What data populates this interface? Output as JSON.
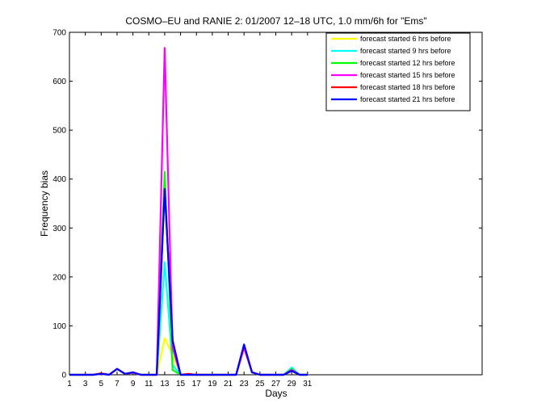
{
  "chart_data": {
    "type": "line",
    "title": "COSMO–EU and RANIE 2: 01/2007 12–18 UTC, 1.0 mm/6h for \"Ems\"",
    "xlabel": "Days",
    "ylabel": "Frequency bias",
    "xlim": [
      1,
      53
    ],
    "ylim": [
      0,
      700
    ],
    "xticks": [
      1,
      3,
      5,
      7,
      9,
      11,
      13,
      15,
      17,
      19,
      21,
      23,
      25,
      27,
      29,
      31
    ],
    "yticks": [
      0,
      100,
      200,
      300,
      400,
      500,
      600,
      700
    ],
    "legend_position": "top-right",
    "x": [
      1,
      2,
      3,
      4,
      5,
      6,
      7,
      8,
      9,
      10,
      11,
      12,
      13,
      14,
      15,
      16,
      17,
      18,
      19,
      20,
      21,
      22,
      23,
      24,
      25,
      26,
      27,
      28,
      29,
      30,
      31
    ],
    "series": [
      {
        "name": "forecast started 6 hrs before",
        "color": "#ffff00",
        "values": [
          0,
          0,
          0,
          0,
          2,
          0,
          12,
          2,
          4,
          0,
          0,
          0,
          75,
          40,
          0,
          0,
          0,
          0,
          0,
          0,
          0,
          0,
          55,
          5,
          0,
          0,
          0,
          0,
          10,
          0,
          0
        ]
      },
      {
        "name": "forecast started 9 hrs before",
        "color": "#00ffff",
        "values": [
          0,
          0,
          0,
          0,
          2,
          0,
          12,
          2,
          4,
          0,
          0,
          0,
          230,
          20,
          0,
          0,
          0,
          0,
          0,
          0,
          0,
          0,
          58,
          5,
          0,
          0,
          0,
          0,
          15,
          0,
          0
        ]
      },
      {
        "name": "forecast started 12 hrs before",
        "color": "#00ff00",
        "values": [
          0,
          0,
          0,
          0,
          2,
          0,
          12,
          2,
          4,
          0,
          0,
          0,
          415,
          10,
          0,
          0,
          0,
          0,
          0,
          0,
          0,
          0,
          58,
          5,
          0,
          0,
          0,
          0,
          12,
          0,
          0
        ]
      },
      {
        "name": "forecast started 15 hrs before",
        "color": "#ff00ff",
        "values": [
          0,
          0,
          0,
          0,
          2,
          0,
          12,
          2,
          4,
          0,
          0,
          0,
          668,
          55,
          0,
          0,
          0,
          0,
          0,
          0,
          0,
          0,
          55,
          5,
          0,
          0,
          0,
          0,
          10,
          0,
          0
        ]
      },
      {
        "name": "forecast started 18 hrs before",
        "color": "#ff0000",
        "values": [
          0,
          0,
          0,
          0,
          3,
          0,
          12,
          2,
          5,
          0,
          0,
          0,
          380,
          70,
          0,
          2,
          0,
          0,
          0,
          0,
          0,
          0,
          60,
          5,
          0,
          0,
          0,
          0,
          8,
          0,
          0
        ]
      },
      {
        "name": "forecast started 21 hrs before",
        "color": "#0000ff",
        "values": [
          0,
          0,
          0,
          0,
          2,
          0,
          12,
          2,
          5,
          0,
          0,
          0,
          380,
          70,
          0,
          0,
          0,
          0,
          0,
          0,
          0,
          0,
          62,
          5,
          0,
          0,
          0,
          0,
          8,
          0,
          0
        ]
      }
    ]
  }
}
